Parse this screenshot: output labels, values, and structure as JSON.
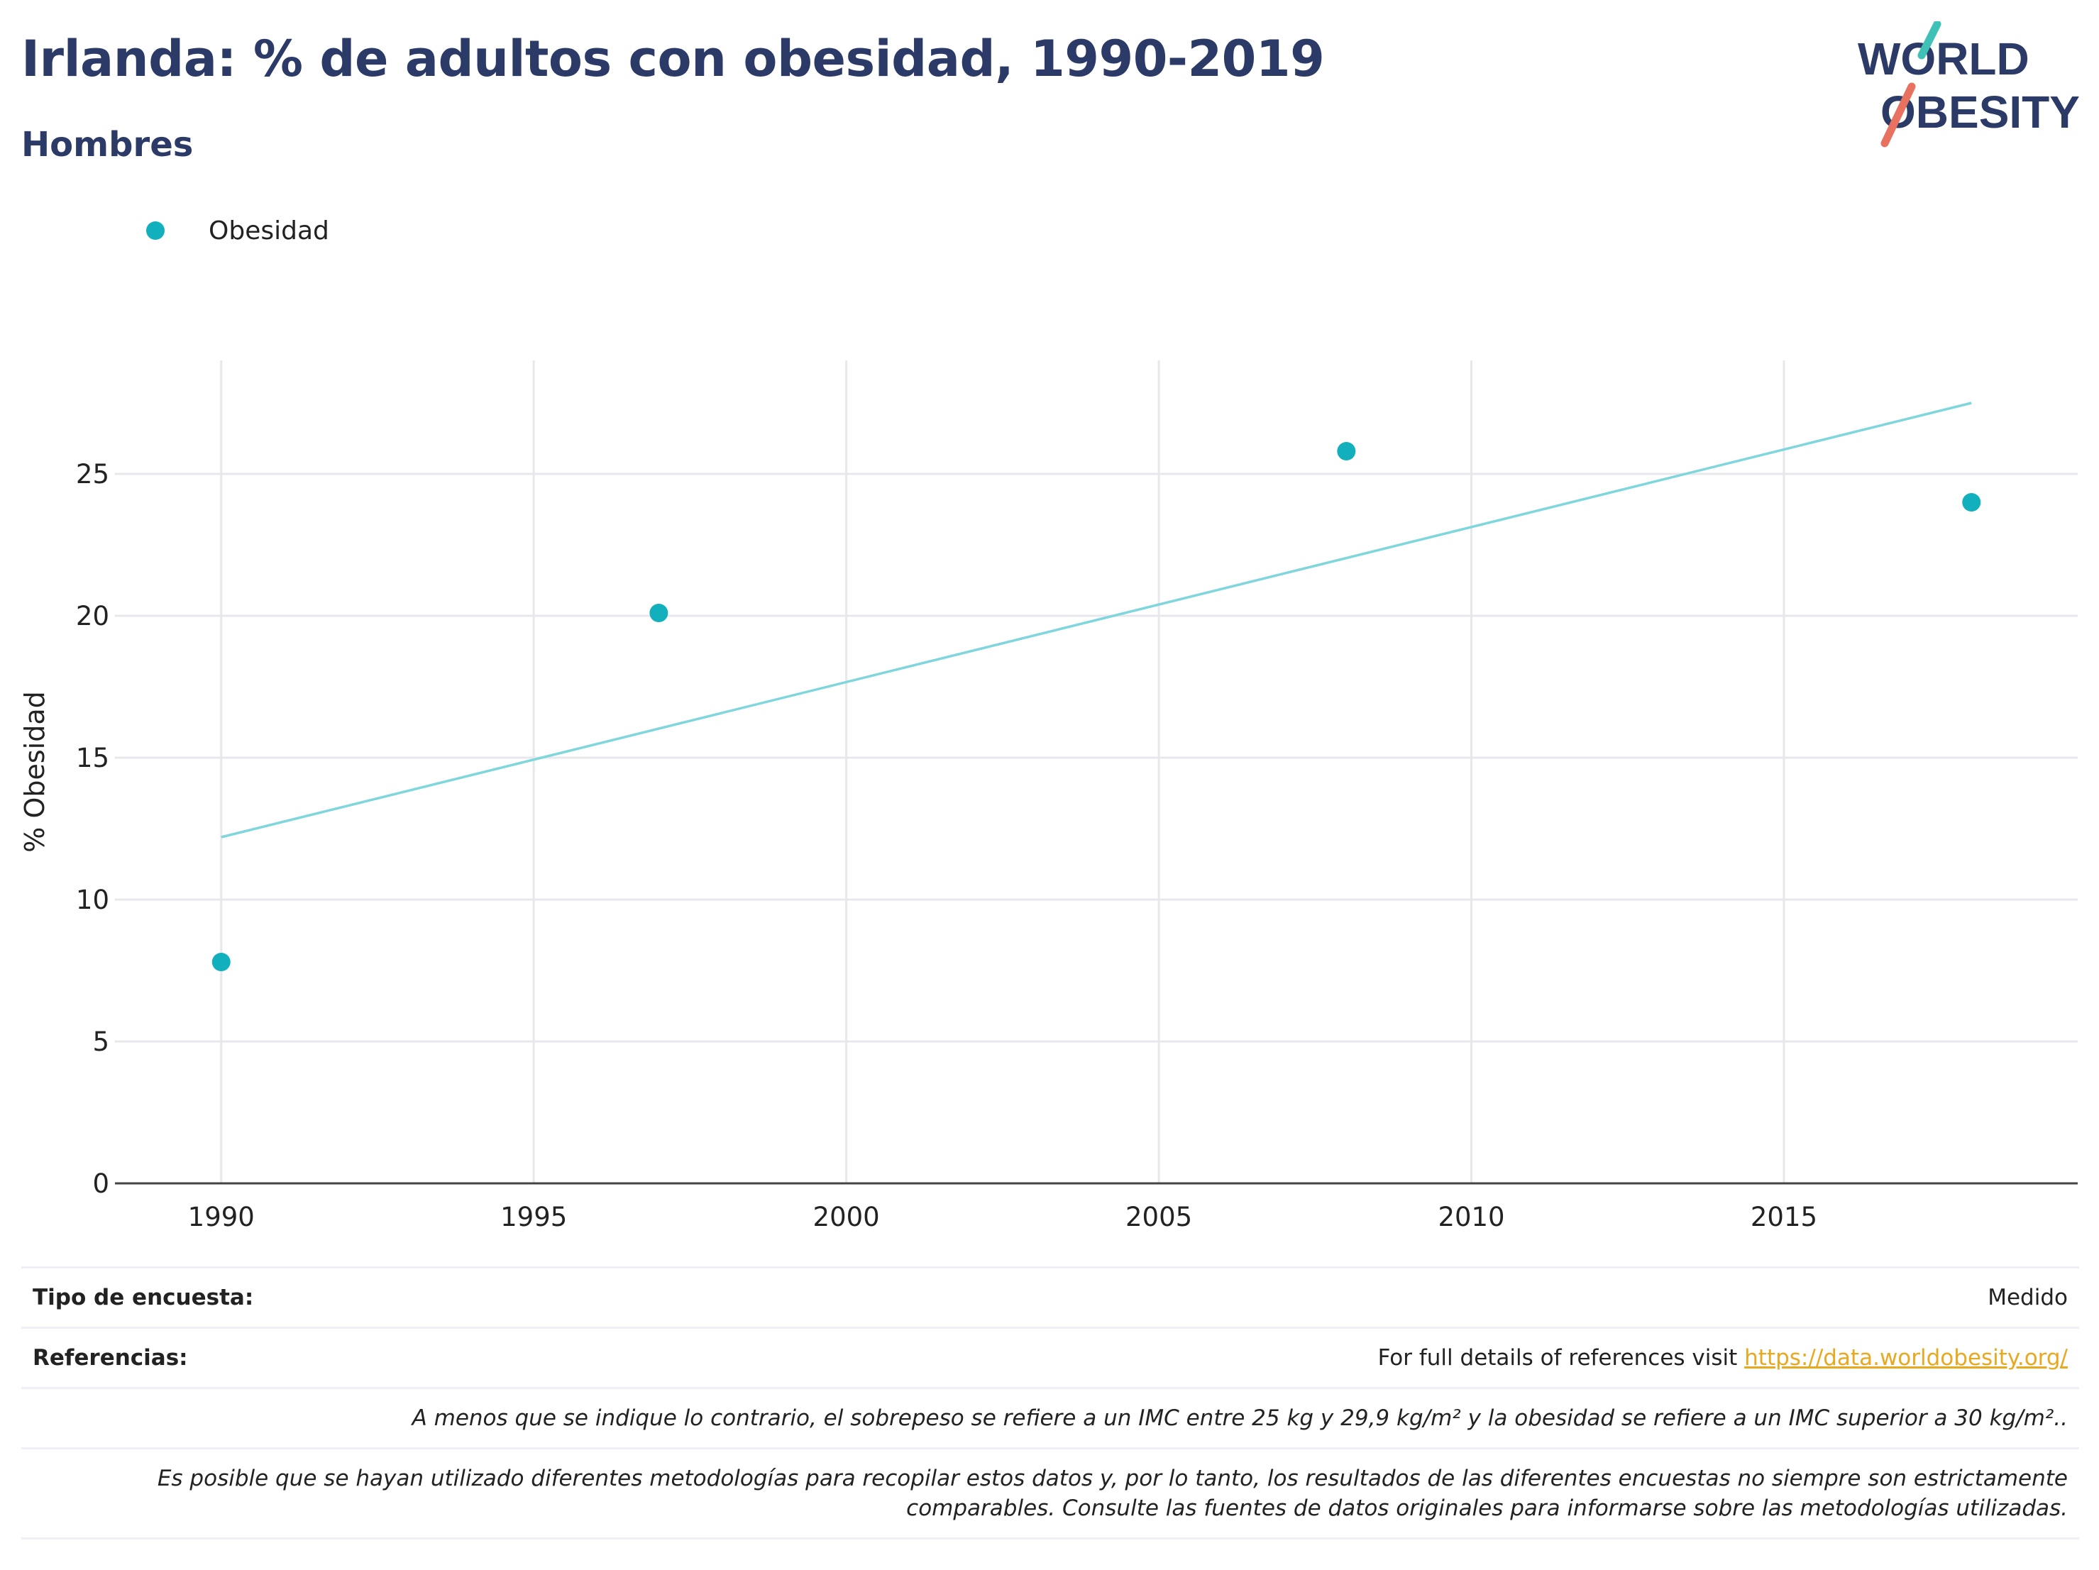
{
  "header": {
    "title": "Irlanda: % de adultos con obesidad, 1990-2019",
    "subtitle": "Hombres"
  },
  "logo": {
    "line1": "WORLD",
    "line2": "OBESITY"
  },
  "colors": {
    "accent": "#12b0bc",
    "trend": "#7fd6dc",
    "title": "#2b3a67",
    "link": "#e8a820"
  },
  "chart_data": {
    "type": "scatter",
    "title": "Irlanda: % de adultos con obesidad, 1990-2019",
    "subtitle": "Hombres",
    "ylabel": "% Obesidad",
    "xlabel": "",
    "xlim": [
      1988.3,
      2019.7
    ],
    "ylim": [
      0,
      29
    ],
    "x_ticks": [
      1990,
      1995,
      2000,
      2005,
      2010,
      2015
    ],
    "y_ticks": [
      0,
      5,
      10,
      15,
      20,
      25
    ],
    "grid": true,
    "legend_position": "top-left",
    "series": [
      {
        "name": "Obesidad",
        "x": [
          1990,
          1997,
          2008,
          2018
        ],
        "y": [
          7.8,
          20.1,
          25.8,
          24.0
        ]
      }
    ],
    "trendline": {
      "x": [
        1990,
        2018
      ],
      "y": [
        12.2,
        27.5
      ]
    }
  },
  "footer": {
    "survey_label": "Tipo de encuesta:",
    "survey_value": "Medido",
    "refs_label": "Referencias:",
    "refs_text": "For full details of references visit ",
    "refs_link": "https://data.worldobesity.org/",
    "note1": "A menos que se indique lo contrario, el sobrepeso se refiere a un IMC entre 25 kg y 29,9 kg/m² y la obesidad se refiere a un IMC superior a 30 kg/m²..",
    "note2_line1": "Es posible que se hayan utilizado diferentes metodologías para recopilar estos datos y, por lo tanto, los resultados de las diferentes encuestas no siempre son estrictamente",
    "note2_line2": "comparables. Consulte las fuentes de datos originales para informarse sobre las metodologías utilizadas."
  }
}
